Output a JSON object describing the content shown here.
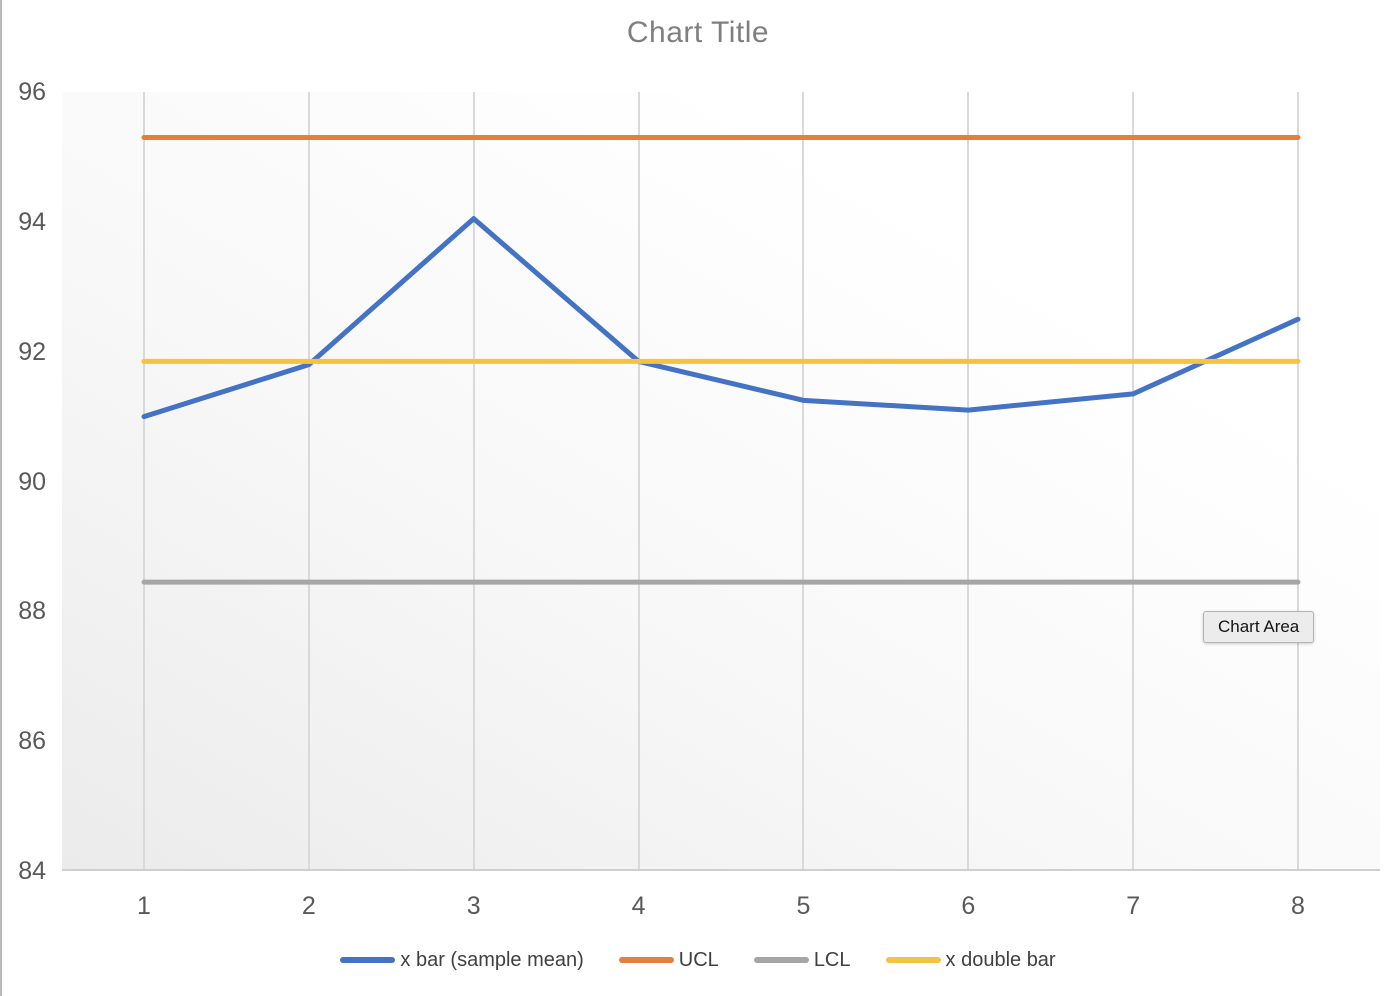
{
  "tooltip": {
    "text": "Chart Area"
  },
  "colors": {
    "title": "#7f7f7f",
    "axis_labels": "#595959",
    "gridline": "#d9d9d9",
    "axis_line": "#cfcfcf",
    "blue": "#4472C4",
    "orange": "#E2803C",
    "gray": "#A6A6A6",
    "yellow": "#F5C242"
  },
  "chart_data": {
    "type": "line",
    "title": "Chart Title",
    "xlabel": "",
    "ylabel": "",
    "categories": [
      "1",
      "2",
      "3",
      "4",
      "5",
      "6",
      "7",
      "8"
    ],
    "series": [
      {
        "name": "x bar (sample mean)",
        "slug": "x-bar-sample-mean",
        "color": "#4472C4",
        "values": [
          91.0,
          91.8,
          94.05,
          91.85,
          91.25,
          91.1,
          91.35,
          92.5
        ]
      },
      {
        "name": "UCL",
        "slug": "ucl",
        "color": "#E2803C",
        "values": [
          95.3,
          95.3,
          95.3,
          95.3,
          95.3,
          95.3,
          95.3,
          95.3
        ]
      },
      {
        "name": "LCL",
        "slug": "lcl",
        "color": "#A6A6A6",
        "values": [
          88.45,
          88.45,
          88.45,
          88.45,
          88.45,
          88.45,
          88.45,
          88.45
        ]
      },
      {
        "name": "x double bar",
        "slug": "x-double-bar",
        "color": "#F5C242",
        "values": [
          91.85,
          91.85,
          91.85,
          91.85,
          91.85,
          91.85,
          91.85,
          91.85
        ]
      }
    ],
    "ylim": [
      84,
      96
    ],
    "yticks": [
      "96",
      "94",
      "92",
      "90",
      "88",
      "86",
      "84"
    ],
    "grid": "vertical-only",
    "legend_position": "bottom"
  }
}
